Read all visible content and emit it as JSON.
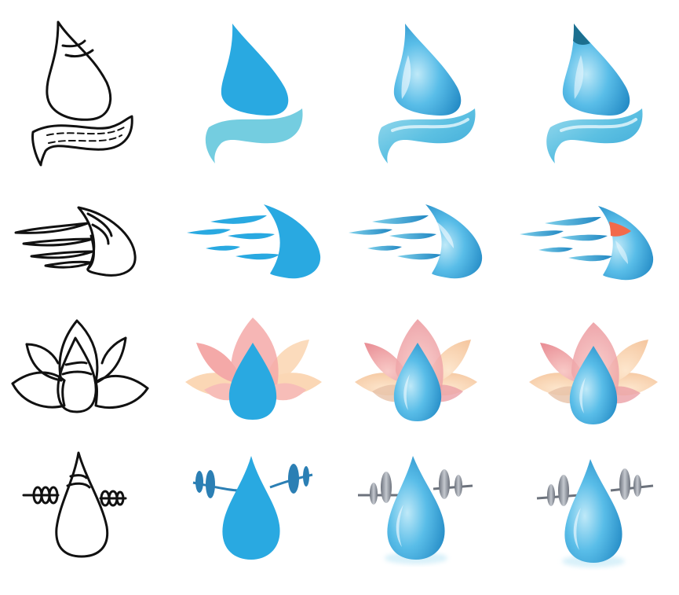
{
  "colors": {
    "sketch": "#111111",
    "blue": "#29a9e1",
    "blue_light": "#7fd0ea",
    "blue_dark": "#1e7fb5",
    "blue_pale": "#bfe7f6",
    "teal_band": "#74cde0",
    "tip_dark": "#1c6f8f",
    "tip_orange": "#f26a4b",
    "petal_pink": "#f4a9a8",
    "petal_peach": "#fbd7b5",
    "petal_rose": "#e9959a",
    "weight_blue": "#2b7fb4",
    "weight_grey": "#9aa0aa",
    "weight_grey_dark": "#6c727c"
  },
  "grid": {
    "rows": [
      "droplet-wave",
      "speeding-drop",
      "lotus-drop",
      "dumbbell-drop"
    ],
    "stages": [
      "sketch",
      "flat",
      "glossy",
      "glossy-accent"
    ]
  }
}
